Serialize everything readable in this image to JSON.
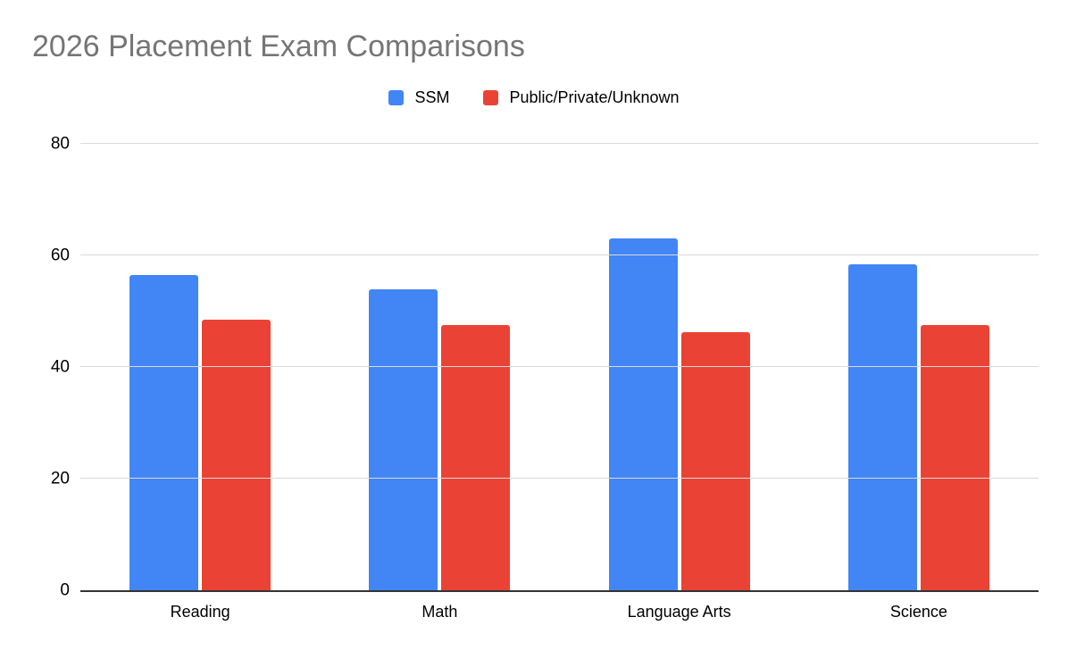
{
  "chart": {
    "title": "2026 Placement Exam Comparisons"
  },
  "chart_data": {
    "type": "bar",
    "title": "2026 Placement Exam Comparisons",
    "categories": [
      "Reading",
      "Math",
      "Language Arts",
      "Science"
    ],
    "series": [
      {
        "name": "SSM",
        "color": "#4285F4",
        "values": [
          56.5,
          54.0,
          63.0,
          58.4
        ]
      },
      {
        "name": "Public/Private/Unknown",
        "color": "#EA4335",
        "values": [
          48.5,
          47.6,
          46.2,
          47.6
        ]
      }
    ],
    "xlabel": "",
    "ylabel": "",
    "ylim": [
      0,
      80
    ],
    "y_ticks": [
      0,
      20,
      40,
      60,
      80
    ],
    "grid": true,
    "legend_position": "top-center",
    "colors": {
      "title": "#757575",
      "gridline": "#D9D9D9",
      "axis_line": "#333333",
      "tick_label": "#000000"
    }
  }
}
